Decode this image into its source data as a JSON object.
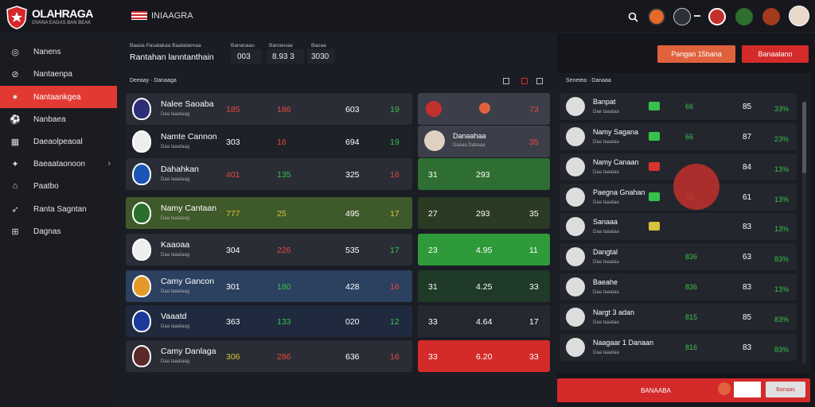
{
  "app": {
    "title": "OLAHRAGA",
    "subtitle": "OVANA EAGAS BAN BEAK"
  },
  "header": {
    "flag_label": "INIAAGRA"
  },
  "sidebar": {
    "items": [
      {
        "label": "Nanens",
        "icon": "globe-icon"
      },
      {
        "label": "Nantaenpa",
        "icon": "compass-icon"
      },
      {
        "label": "Nantaankgea",
        "icon": "ball-icon",
        "active": true
      },
      {
        "label": "Nanbaea",
        "icon": "football-icon"
      },
      {
        "label": "Daeaolpeaoal",
        "icon": "calendar-icon"
      },
      {
        "label": "Baeaataonoon",
        "icon": "player-icon",
        "has_arrow": true
      },
      {
        "label": "Paatbo",
        "icon": "home-icon"
      },
      {
        "label": "Ranta Sagntan",
        "icon": "running-icon"
      },
      {
        "label": "Dagnas",
        "icon": "grid-icon"
      }
    ]
  },
  "summary": {
    "label1": "Baaoa Pasatakaa Baalataenaa",
    "title": "Rantahan lanntanthain",
    "label2": "Bananaao",
    "val2": "003",
    "label3": "Banoenaa",
    "val3": "8.93 3",
    "label4": "Baoaa",
    "val4": "3030"
  },
  "actions": {
    "primary": "Pangan 15bana",
    "secondary": "Banaalano"
  },
  "table": {
    "section_label": "Deeaay · Danaaga",
    "rows": [
      {
        "name": "Nalee Saoaba",
        "sub": "Daa taaataag",
        "c1": "185",
        "c2": "186",
        "c3": "603",
        "c4": "19",
        "c1c": "red",
        "c2c": "red",
        "c4c": "green",
        "bg": "#2a2d36"
      },
      {
        "name": "Namte Cannon",
        "sub": "Daa taaataag",
        "c1": "303",
        "c2": "16",
        "c3": "694",
        "c4": "19",
        "c1c": "white",
        "c2c": "red",
        "c4c": "green",
        "bg": "#1f2128"
      },
      {
        "name": "Dahahkan",
        "sub": "Daa taaataag",
        "c1": "401",
        "c2": "135",
        "c3": "325",
        "c4": "16",
        "c1c": "red",
        "c2c": "green",
        "c4c": "red",
        "bg": "#2a2d36"
      },
      {
        "name": "Namy Cantaan",
        "sub": "Daa taaataag",
        "c1": "777",
        "c2": "25",
        "c3": "495",
        "c4": "17",
        "c1c": "yellow",
        "c2c": "yellow",
        "c4c": "yellow",
        "bg": "#3f5a2a"
      },
      {
        "name": "Kaaoaa",
        "sub": "Daa taaataag",
        "c1": "304",
        "c2": "226",
        "c3": "535",
        "c4": "17",
        "c1c": "white",
        "c2c": "red",
        "c4c": "green",
        "bg": "#2a2d36"
      },
      {
        "name": "Camy Gancon",
        "sub": "Daa taaataag",
        "c1": "301",
        "c2": "180",
        "c3": "428",
        "c4": "16",
        "c1c": "white",
        "c2c": "green",
        "c4c": "red",
        "bg": "#2c4060"
      },
      {
        "name": "Vaaatd",
        "sub": "Daa taaataag",
        "c1": "363",
        "c2": "133",
        "c3": "020",
        "c4": "12",
        "c1c": "white",
        "c2c": "green",
        "c4c": "green",
        "bg": "#1f2a3e"
      },
      {
        "name": "Camy Danlaga",
        "sub": "Daa taaataag",
        "c1": "306",
        "c2": "286",
        "c3": "636",
        "c4": "16",
        "c1c": "yellow",
        "c2c": "red",
        "c4c": "red",
        "bg": "#2a2d36"
      }
    ]
  },
  "cards": [
    {
      "a": "",
      "b": "",
      "c": "73",
      "bg": "#3c3f49",
      "label": "",
      "top_label": ""
    },
    {
      "a": "",
      "b": "",
      "c": "35",
      "bg": "#3c3f49",
      "name": "Danaahaa",
      "sub": "Daaaa Dabaaa"
    },
    {
      "a": "31",
      "b": "293",
      "c": "",
      "bg": "#2f6e33"
    },
    {
      "a": "27",
      "b": "293",
      "c": "35",
      "bg": "#2b3a22"
    },
    {
      "a": "23",
      "b": "4.95",
      "c": "11",
      "bg": "#2e9a3a"
    },
    {
      "a": "31",
      "b": "4.25",
      "c": "33",
      "bg": "#1f3a27"
    },
    {
      "a": "33",
      "b": "4.64",
      "c": "17",
      "bg": "#262830"
    },
    {
      "a": "33",
      "b": "6.20",
      "c": "33",
      "bg": "#d42a2a"
    }
  ],
  "right_panel": {
    "header": "Senetea · Danaaa",
    "rows": [
      {
        "name": "Banpat",
        "sub": "Dae taaataa",
        "badge": "#36c24a",
        "v1": "66",
        "v1c": "green",
        "v2": "85",
        "v3": "33%",
        "v3c": "green"
      },
      {
        "name": "Namy Sagana",
        "sub": "Daa taaataa",
        "badge": "#36c24a",
        "v1": "66",
        "v1c": "green",
        "v2": "87",
        "v3": "23%",
        "v3c": "green"
      },
      {
        "name": "Namy Canaan",
        "sub": "Daa taaataa",
        "badge": "#d7342d",
        "v1": "",
        "v1c": "red",
        "v2": "84",
        "v3": "13%",
        "v3c": "green"
      },
      {
        "name": "Paegna Gnahan",
        "sub": "Daa taaataa",
        "badge": "#36c24a",
        "v1": "66",
        "v1c": "green",
        "v2": "61",
        "v3": "13%",
        "v3c": "green"
      },
      {
        "name": "Sanaaa",
        "sub": "Daa taaataa",
        "badge": "#d8c23a",
        "v1": "",
        "v1c": "red",
        "v2": "83",
        "v3": "13%",
        "v3c": "green"
      },
      {
        "name": "Dangtal",
        "sub": "Daa taaataa",
        "badge": "",
        "v1": "836",
        "v1c": "green",
        "v2": "63",
        "v3": "83%",
        "v3c": "green"
      },
      {
        "name": "Baeahe",
        "sub": "Daa taaataa",
        "badge": "",
        "v1": "836",
        "v1c": "green",
        "v2": "83",
        "v3": "13%",
        "v3c": "green"
      },
      {
        "name": "Nargt 3 adan",
        "sub": "Daa taaataa",
        "badge": "",
        "v1": "815",
        "v1c": "green",
        "v2": "85",
        "v3": "83%",
        "v3c": "green"
      },
      {
        "name": "Naagaar 1 Danaan",
        "sub": "Daa taaataa",
        "badge": "",
        "v1": "816",
        "v1c": "green",
        "v2": "83",
        "v3": "83%",
        "v3c": "green"
      }
    ]
  },
  "footer": {
    "cta": "BANAABA",
    "right_button": "Banaas"
  }
}
